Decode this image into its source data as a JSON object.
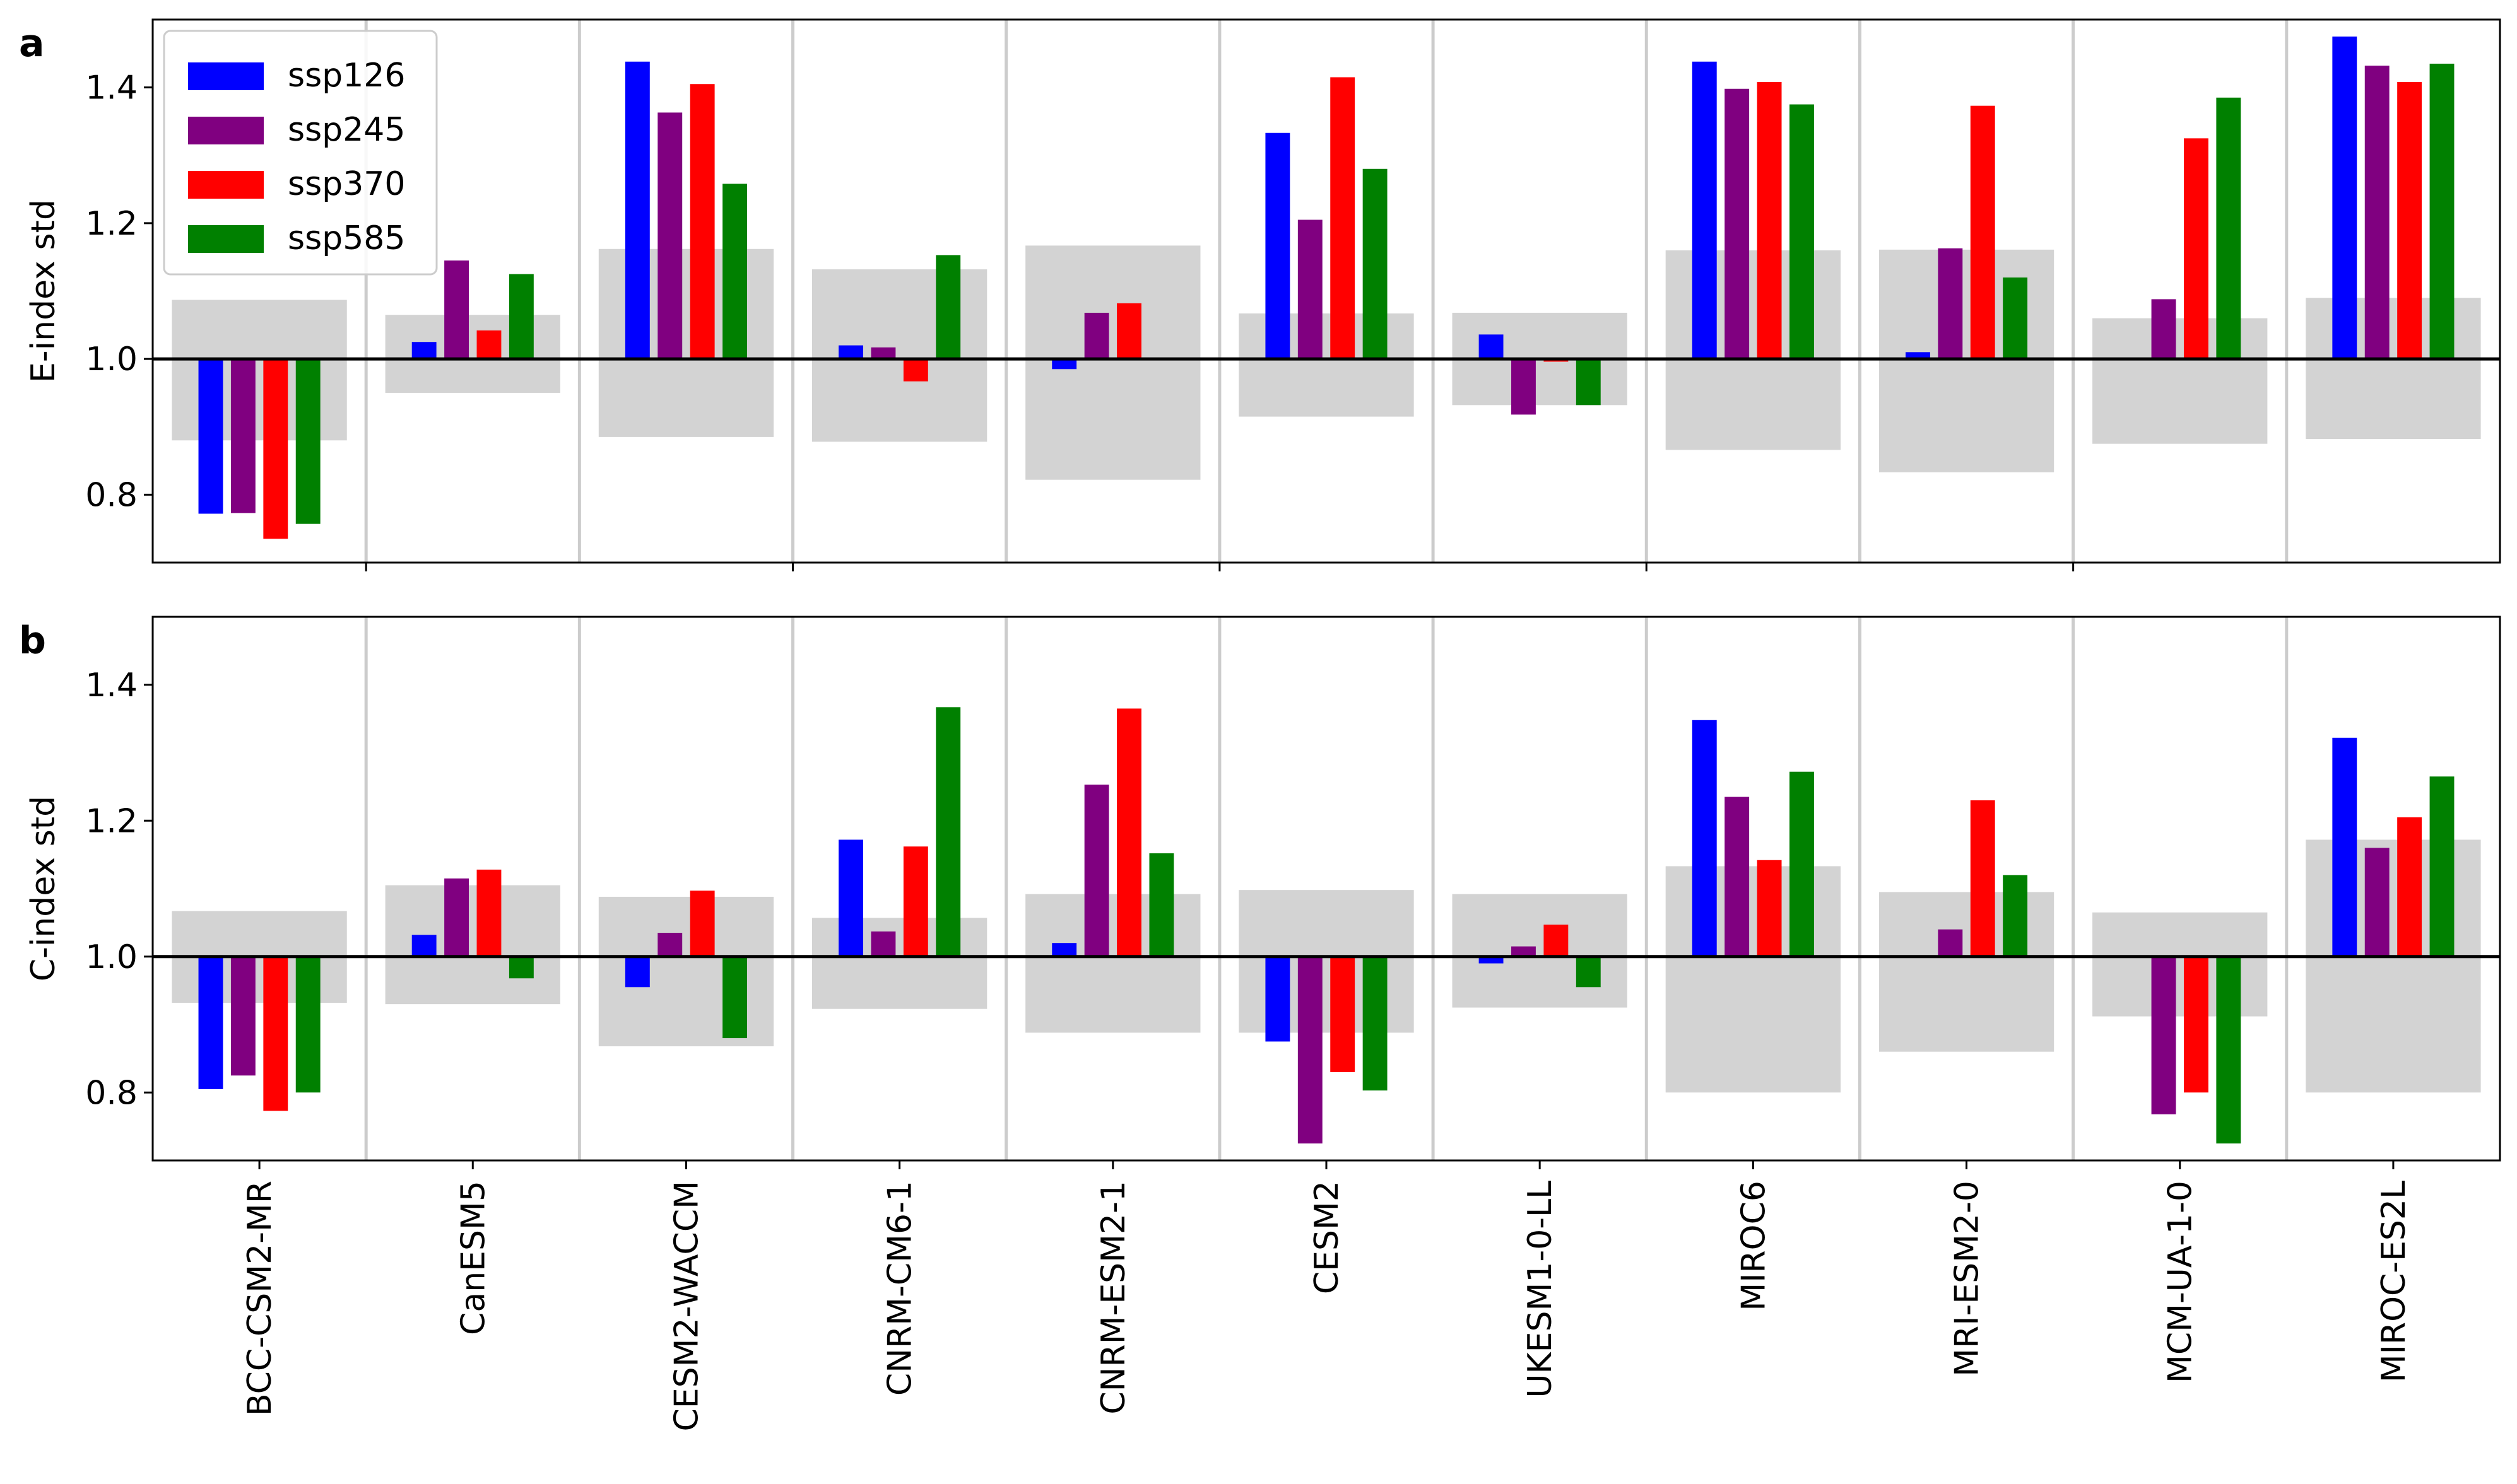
{
  "chart_data": {
    "type": "bar",
    "categories": [
      "BCC-CSM2-MR",
      "CanESM5",
      "CESM2-WACCM",
      "CNRM-CM6-1",
      "CNRM-ESM2-1",
      "CESM2",
      "UKESM1-0-LL",
      "MIROC6",
      "MRI-ESM2-0",
      "MCM-UA-1-0",
      "MIROC-ES2L"
    ],
    "legend": {
      "placement": "top-left",
      "entries": [
        {
          "name": "ssp126",
          "color": "#0000ff"
        },
        {
          "name": "ssp245",
          "color": "#800080"
        },
        {
          "name": "ssp370",
          "color": "#ff0000"
        },
        {
          "name": "ssp585",
          "color": "#008000"
        }
      ]
    },
    "baseline": 1.0,
    "background_range_color": "#d3d3d3",
    "panels": [
      {
        "letter": "a",
        "ylabel": "E-index std",
        "ylim": [
          0.7,
          1.5
        ],
        "yticks": [
          "0.8",
          "1.0",
          "1.2",
          "1.4"
        ],
        "ranges": [
          [
            0.88,
            1.087
          ],
          [
            0.95,
            1.065
          ],
          [
            0.885,
            1.162
          ],
          [
            0.878,
            1.132
          ],
          [
            0.822,
            1.167
          ],
          [
            0.915,
            1.067
          ],
          [
            0.932,
            1.068
          ],
          [
            0.866,
            1.16
          ],
          [
            0.833,
            1.161
          ],
          [
            0.875,
            1.06
          ],
          [
            0.882,
            1.09
          ]
        ],
        "series": [
          {
            "name": "ssp126",
            "values": [
              0.772,
              1.025,
              1.438,
              1.02,
              0.985,
              1.333,
              1.036,
              1.438,
              1.01,
              null,
              1.475
            ]
          },
          {
            "name": "ssp245",
            "values": [
              0.773,
              1.145,
              1.363,
              1.017,
              1.068,
              1.205,
              0.918,
              1.398,
              1.163,
              1.088,
              1.432
            ]
          },
          {
            "name": "ssp370",
            "values": [
              0.735,
              1.042,
              1.405,
              0.967,
              1.082,
              1.415,
              0.996,
              1.408,
              1.373,
              1.325,
              1.408
            ]
          },
          {
            "name": "ssp585",
            "values": [
              0.757,
              1.125,
              1.258,
              1.153,
              null,
              1.28,
              0.932,
              1.375,
              1.12,
              1.385,
              1.435
            ]
          }
        ]
      },
      {
        "letter": "b",
        "ylabel": "C-index std",
        "ylim": [
          0.7,
          1.5
        ],
        "yticks": [
          "0.8",
          "1.0",
          "1.2",
          "1.4"
        ],
        "ranges": [
          [
            0.932,
            1.067
          ],
          [
            0.93,
            1.105
          ],
          [
            0.868,
            1.088
          ],
          [
            0.923,
            1.057
          ],
          [
            0.888,
            1.092
          ],
          [
            0.888,
            1.098
          ],
          [
            0.925,
            1.092
          ],
          [
            0.8,
            1.133
          ],
          [
            0.86,
            1.095
          ],
          [
            0.912,
            1.065
          ],
          [
            0.8,
            1.172
          ]
        ],
        "series": [
          {
            "name": "ssp126",
            "values": [
              0.805,
              1.032,
              0.955,
              1.172,
              1.02,
              0.875,
              0.99,
              1.348,
              null,
              null,
              1.322
            ]
          },
          {
            "name": "ssp245",
            "values": [
              0.825,
              1.115,
              1.035,
              1.037,
              1.253,
              0.725,
              1.015,
              1.235,
              1.04,
              0.768,
              1.16
            ]
          },
          {
            "name": "ssp370",
            "values": [
              0.773,
              1.128,
              1.097,
              1.162,
              1.365,
              0.83,
              1.047,
              1.142,
              1.23,
              0.8,
              1.205
            ]
          },
          {
            "name": "ssp585",
            "values": [
              0.8,
              0.968,
              0.88,
              1.367,
              1.152,
              0.803,
              0.955,
              1.272,
              1.12,
              0.725,
              1.265
            ]
          }
        ]
      }
    ]
  }
}
